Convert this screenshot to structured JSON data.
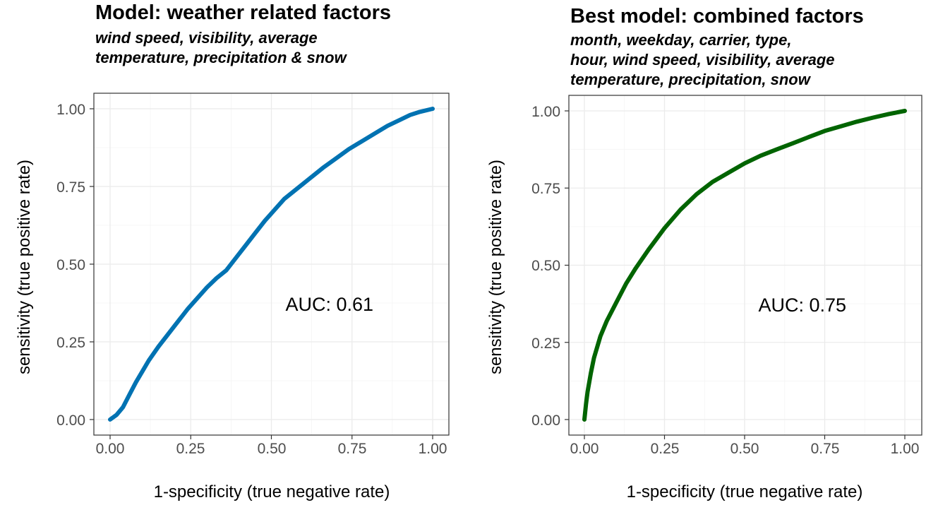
{
  "chart_data": [
    {
      "type": "line",
      "title": "Model: weather related factors",
      "subtitle_lines": [
        "wind speed, visibility, average",
        "temperature, precipitation & snow"
      ],
      "xlabel": "1-specificity (true negative rate)",
      "ylabel": "sensitivity (true positive rate)",
      "xlim": [
        0,
        1
      ],
      "ylim": [
        0,
        1
      ],
      "xticks": [
        "0.00",
        "0.25",
        "0.50",
        "0.75",
        "1.00"
      ],
      "yticks": [
        "0.00",
        "0.25",
        "0.50",
        "0.75",
        "1.00"
      ],
      "grid": true,
      "annotation": {
        "text": "AUC: 0.61",
        "x": 0.68,
        "y": 0.35
      },
      "line_color": "#0072b2",
      "series": [
        {
          "x": [
            0.0,
            0.02,
            0.04,
            0.06,
            0.08,
            0.1,
            0.12,
            0.15,
            0.18,
            0.21,
            0.24,
            0.27,
            0.3,
            0.33,
            0.36,
            0.39,
            0.42,
            0.45,
            0.48,
            0.51,
            0.54,
            0.57,
            0.6,
            0.63,
            0.66,
            0.7,
            0.74,
            0.78,
            0.82,
            0.86,
            0.9,
            0.93,
            0.96,
            1.0
          ],
          "y": [
            0.0,
            0.015,
            0.04,
            0.08,
            0.12,
            0.155,
            0.19,
            0.235,
            0.275,
            0.315,
            0.355,
            0.39,
            0.425,
            0.455,
            0.48,
            0.52,
            0.56,
            0.6,
            0.64,
            0.675,
            0.71,
            0.735,
            0.76,
            0.785,
            0.81,
            0.84,
            0.87,
            0.895,
            0.92,
            0.945,
            0.965,
            0.98,
            0.99,
            1.0
          ]
        }
      ]
    },
    {
      "type": "line",
      "title": "Best model: combined factors",
      "subtitle_lines": [
        "month, weekday, carrier, type,",
        "hour, wind speed, visibility, average",
        "temperature, precipitation, snow"
      ],
      "xlabel": "1-specificity (true negative rate)",
      "ylabel": "sensitivity (true positive rate)",
      "xlim": [
        0,
        1
      ],
      "ylim": [
        0,
        1
      ],
      "xticks": [
        "0.00",
        "0.25",
        "0.50",
        "0.75",
        "1.00"
      ],
      "yticks": [
        "0.00",
        "0.25",
        "0.50",
        "0.75",
        "1.00"
      ],
      "grid": true,
      "annotation": {
        "text": "AUC: 0.75",
        "x": 0.68,
        "y": 0.35
      },
      "line_color": "#006400",
      "series": [
        {
          "x": [
            0.0,
            0.005,
            0.01,
            0.02,
            0.03,
            0.05,
            0.07,
            0.1,
            0.13,
            0.16,
            0.2,
            0.25,
            0.3,
            0.35,
            0.4,
            0.45,
            0.5,
            0.55,
            0.6,
            0.65,
            0.7,
            0.75,
            0.8,
            0.85,
            0.9,
            0.95,
            1.0
          ],
          "y": [
            0.0,
            0.05,
            0.09,
            0.15,
            0.2,
            0.27,
            0.32,
            0.38,
            0.44,
            0.49,
            0.55,
            0.62,
            0.68,
            0.73,
            0.77,
            0.8,
            0.83,
            0.855,
            0.875,
            0.895,
            0.915,
            0.935,
            0.95,
            0.965,
            0.978,
            0.99,
            1.0
          ]
        }
      ]
    }
  ]
}
